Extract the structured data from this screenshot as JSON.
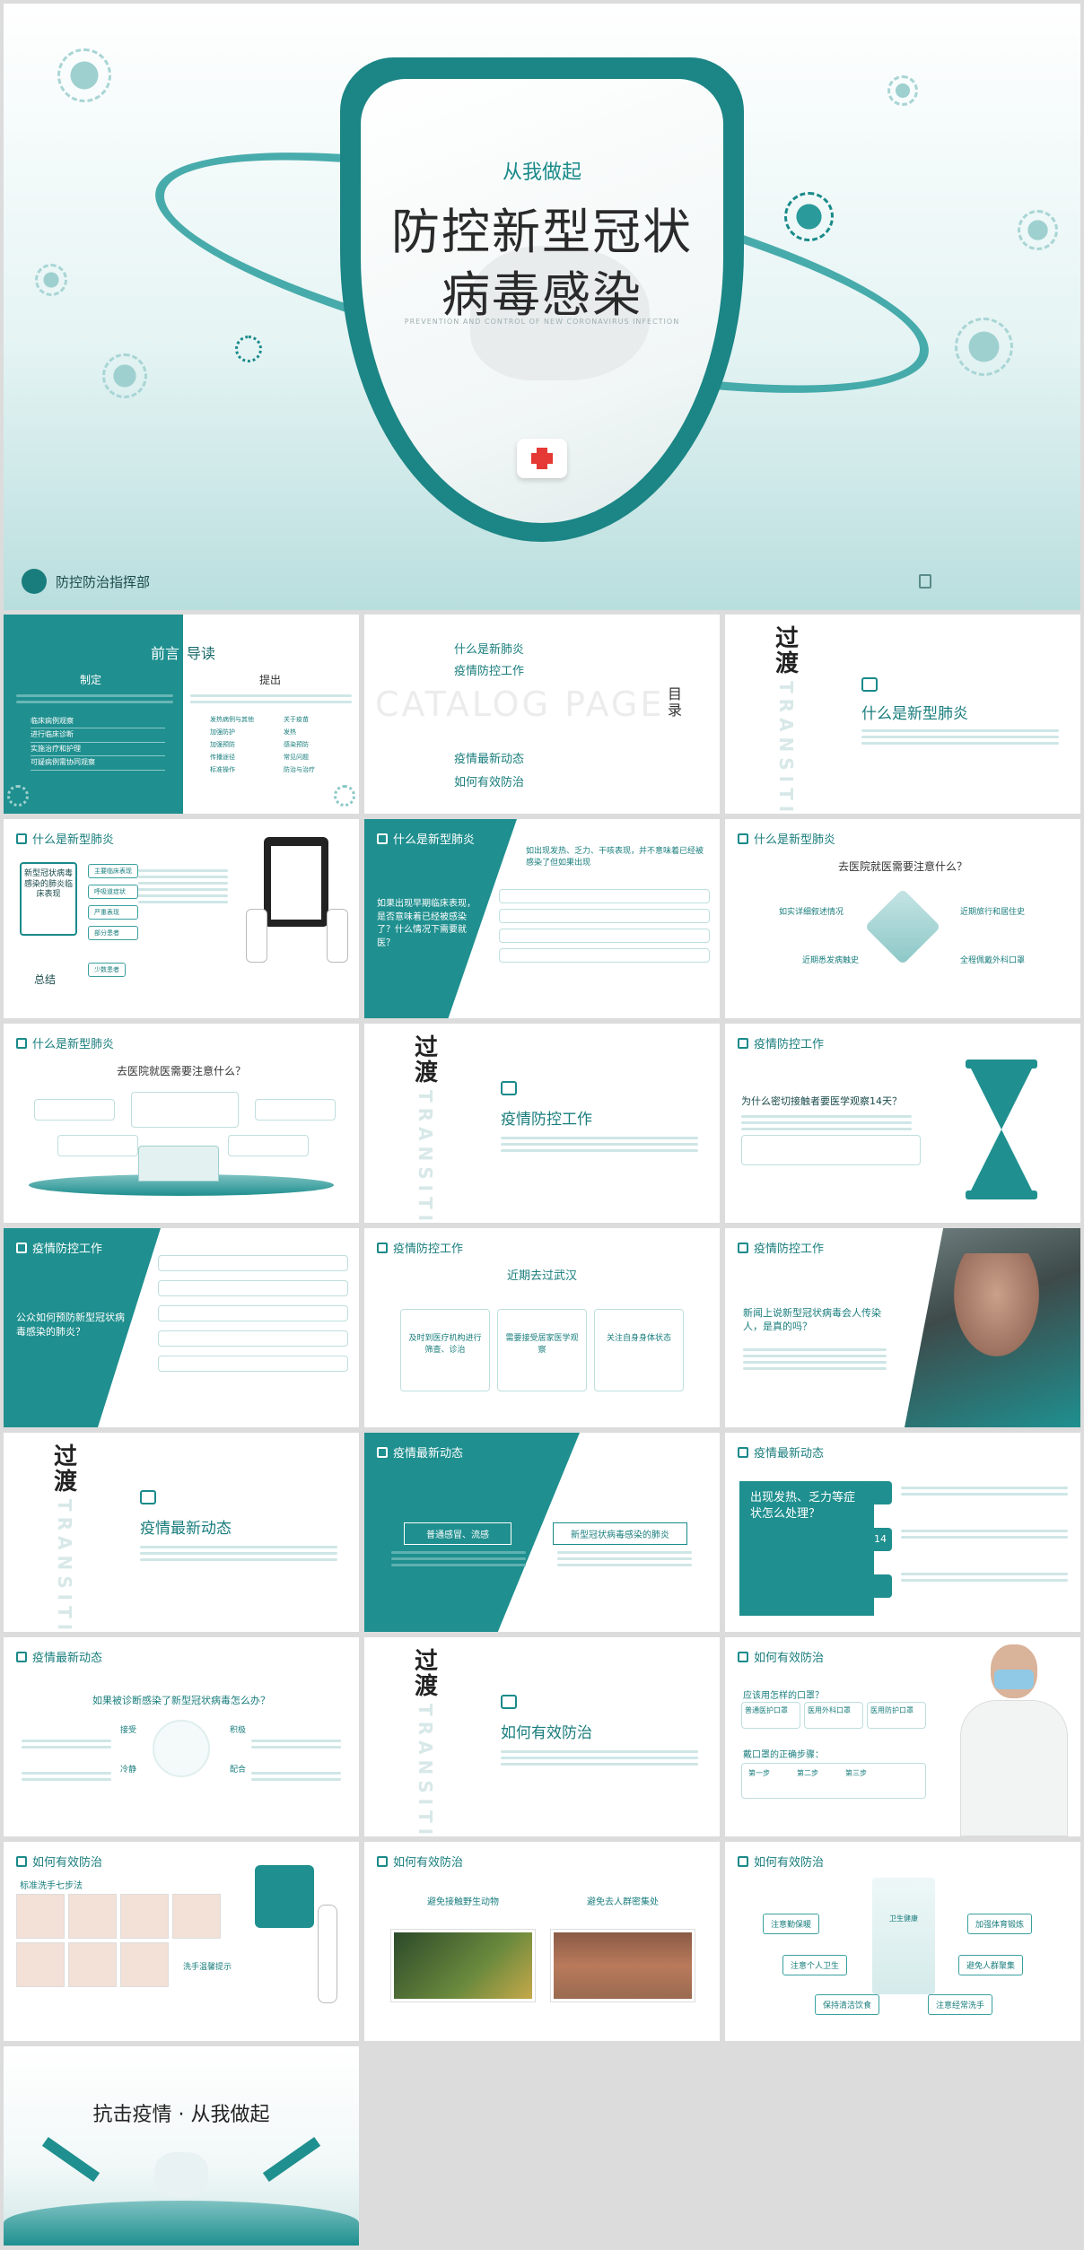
{
  "cover": {
    "kicker": "从我做起",
    "title_line1": "防控新型冠状",
    "title_line2": "病毒感染",
    "subtitle_en": "PREVENTION AND CONTROL OF NEW CORONAVIRUS INFECTION",
    "org": "防控防治指挥部"
  },
  "s2": {
    "heading1": "前言",
    "heading2": "导读",
    "left_title": "制定",
    "right_title": "提出",
    "left_items": [
      "临床病例观察",
      "进行临床诊断",
      "实施治疗和护理",
      "可疑病例需协同观察"
    ],
    "right_items": [
      "发热病例与其他",
      "关于疫苗",
      "加强防护",
      "发热",
      "加强预防",
      "感染预防",
      "传播途径",
      "常见问题",
      "标准操作",
      "防治与治疗"
    ]
  },
  "s3": {
    "items": [
      "什么是新肺炎",
      "疫情防控工作",
      "疫情最新动态",
      "如何有效防治"
    ],
    "catalog": "CATALOG PAGE",
    "mulu": "目录"
  },
  "s4": {
    "guo": "过",
    "du": "渡",
    "transition": "TRANSITION",
    "title": "什么是新型肺炎"
  },
  "s5": {
    "header": "什么是新型肺炎",
    "left_label": "新型冠状病毒感染的肺炎临床表现",
    "left_sub": "总结",
    "tags": [
      "主要临床表现",
      "呼吸道症状",
      "严重表现",
      "部分患者",
      "少数患者"
    ]
  },
  "s6": {
    "header": "什么是新型肺炎",
    "question": "如果出现早期临床表现，是否意味着已经被感染了？什么情况下需要就医？",
    "top": "如出现发热、乏力、干咳表现，并不意味着已经被感染了但如果出现"
  },
  "s7": {
    "header": "什么是新型肺炎",
    "title": "去医院就医需要注意什么？",
    "items": [
      "如实详细叙述情况",
      "近期旅行和居住史",
      "全程佩戴外科口罩",
      "近期悉发病触史"
    ]
  },
  "s8": {
    "header": "什么是新型肺炎",
    "title": "去医院就医需要注意什么？"
  },
  "s9": {
    "guo": "过",
    "du": "渡",
    "transition": "TRANSITION",
    "title": "疫情防控工作"
  },
  "s10": {
    "header": "疫情防控工作",
    "title": "为什么密切接触者要医学观察14天？"
  },
  "s11": {
    "header": "疫情防控工作",
    "question": "公众如何预防新型冠状病毒感染的肺炎？"
  },
  "s12": {
    "header": "疫情防控工作",
    "title": "近期去过武汉",
    "cards": [
      "及时到医疗机构进行筛查、诊治",
      "需要接受居家医学观察",
      "关注自身身体状态"
    ]
  },
  "s13": {
    "header": "疫情防控工作",
    "title": "新闻上说新型冠状病毒会人传染人，是真的吗？"
  },
  "s14": {
    "guo": "过",
    "du": "渡",
    "transition": "TRANSITION",
    "title": "疫情最新动态"
  },
  "s15": {
    "header": "疫情最新动态",
    "left": "普通感冒、流感",
    "right": "新型冠状病毒感染的肺炎"
  },
  "s16": {
    "header": "疫情最新动态",
    "question": "出现发热、乏力等症状怎么处理？",
    "num": "14"
  },
  "s17": {
    "header": "疫情最新动态",
    "title": "如果被诊断感染了新型冠状病毒怎么办？",
    "labels": [
      "接受",
      "积极",
      "冷静",
      "配合"
    ]
  },
  "s18": {
    "guo": "过",
    "du": "渡",
    "transition": "TRANSITION",
    "title": "如何有效防治"
  },
  "s19": {
    "header": "如何有效防治",
    "q1": "应该用怎样的口罩？",
    "masks": [
      "普通医护口罩",
      "医用外科口罩",
      "医用防护口罩"
    ],
    "q2": "戴口罩的正确步骤：",
    "steps": [
      "第一步",
      "第二步",
      "第三步"
    ]
  },
  "s20": {
    "header": "如何有效防治",
    "title": "标准洗手七步法",
    "sub": "洗手温馨提示"
  },
  "s21": {
    "header": "如何有效防治",
    "left": "避免接触野生动物",
    "right": "避免去人群密集处"
  },
  "s22": {
    "header": "如何有效防治",
    "center": "卫生健康",
    "items": [
      "注意勤保暖",
      "加强体育锻炼",
      "注意个人卫生",
      "避免人群聚集",
      "保持清洁饮食",
      "注意经常洗手"
    ]
  },
  "s23": {
    "title": "抗击疫情 · 从我做起"
  }
}
